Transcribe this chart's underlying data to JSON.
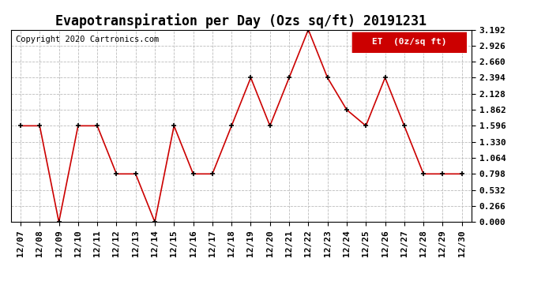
{
  "title": "Evapotranspiration per Day (Ozs sq/ft) 20191231",
  "copyright": "Copyright 2020 Cartronics.com",
  "legend_label": "ET  (0z/sq ft)",
  "x_labels": [
    "12/07",
    "12/08",
    "12/09",
    "12/10",
    "12/11",
    "12/12",
    "12/13",
    "12/14",
    "12/15",
    "12/16",
    "12/17",
    "12/18",
    "12/19",
    "12/20",
    "12/21",
    "12/22",
    "12/23",
    "12/24",
    "12/25",
    "12/26",
    "12/27",
    "12/28",
    "12/29",
    "12/30"
  ],
  "y_values": [
    1.596,
    1.596,
    0.0,
    1.596,
    1.596,
    0.798,
    0.798,
    0.0,
    1.596,
    0.798,
    0.798,
    1.596,
    2.394,
    1.596,
    2.394,
    3.192,
    2.394,
    1.862,
    1.596,
    2.394,
    1.596,
    0.798,
    0.798,
    0.798
  ],
  "y_ticks": [
    0.0,
    0.266,
    0.532,
    0.798,
    1.064,
    1.33,
    1.596,
    1.862,
    2.128,
    2.394,
    2.66,
    2.926,
    3.192
  ],
  "ylim": [
    0.0,
    3.192
  ],
  "line_color": "#cc0000",
  "marker_color": "#000000",
  "grid_color": "#bbbbbb",
  "bg_color": "#ffffff",
  "plot_bg_color": "#ffffff",
  "title_fontsize": 12,
  "tick_fontsize": 8,
  "copyright_fontsize": 7.5,
  "legend_fontsize": 8
}
